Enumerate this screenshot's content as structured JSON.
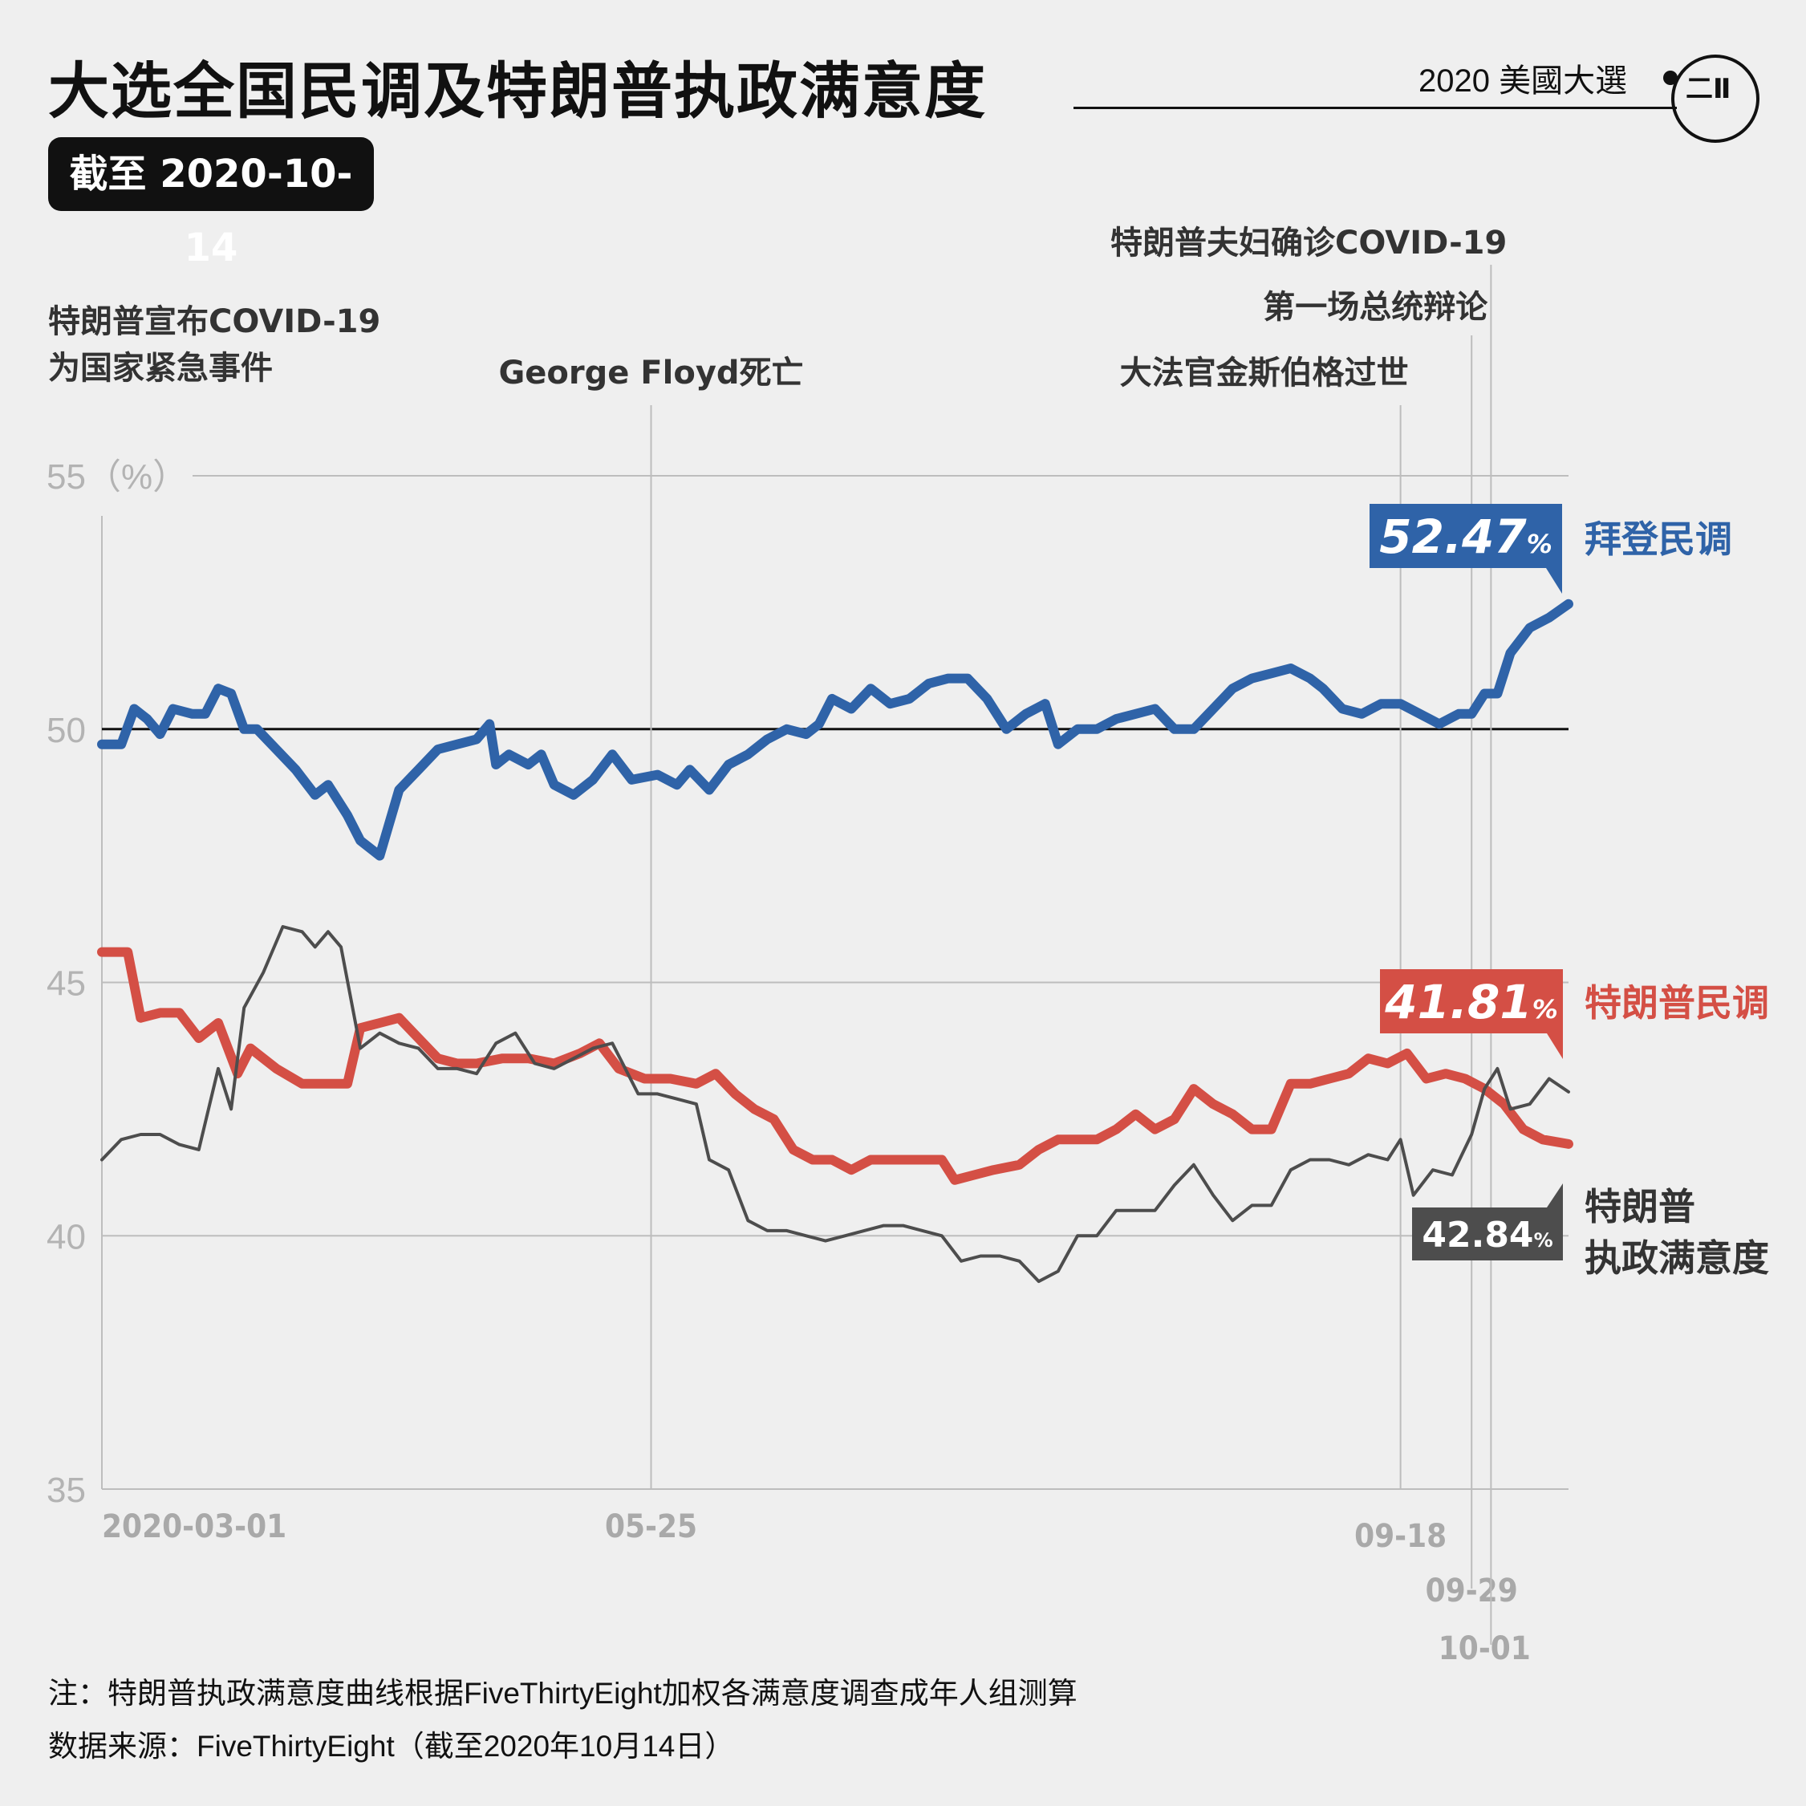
{
  "header": {
    "title": "大选全国民调及特朗普执政满意度",
    "date_badge": "截至 2020-10-14",
    "brand": "2020 美國大選",
    "logo_text": "二Ⅱ"
  },
  "footnotes": {
    "note": "注：特朗普执政满意度曲线根据FiveThirtyEight加权各满意度调查成年人组测算",
    "source": "数据来源：FiveThirtyEight（截至2020年10月14日）"
  },
  "colors": {
    "biden": "#2f63a8",
    "trump_poll": "#d44f45",
    "approval": "#4d4d4d",
    "grid": "#bdbdbd",
    "background": "#efefef"
  },
  "chart_data": {
    "type": "line",
    "title": "",
    "ylabel": "",
    "ylim": [
      35,
      55
    ],
    "yticks": [
      {
        "value": 55,
        "label": "55（%）"
      },
      {
        "value": 50,
        "label": "50"
      },
      {
        "value": 45,
        "label": "45"
      },
      {
        "value": 40,
        "label": "40"
      },
      {
        "value": 35,
        "label": "35"
      }
    ],
    "xrange": [
      "2020-03-01",
      "2020-10-14"
    ],
    "xticks": [
      {
        "date": "2020-03-01",
        "label": "2020-03-01"
      },
      {
        "date": "2020-05-25",
        "label": "05-25"
      },
      {
        "date": "2020-09-18",
        "label": "09-18"
      },
      {
        "date": "2020-09-29",
        "label": "09-29"
      },
      {
        "date": "2020-10-01",
        "label": "10-01"
      }
    ],
    "events": [
      {
        "date": "2020-03-13",
        "label_lines": [
          "特朗普宣布COVID-19",
          "为国家紧急事件"
        ],
        "line": false
      },
      {
        "date": "2020-05-25",
        "label_lines": [
          "George Floyd死亡"
        ],
        "line": true
      },
      {
        "date": "2020-09-18",
        "label_lines": [
          "大法官金斯伯格过世"
        ],
        "line": true
      },
      {
        "date": "2020-09-29",
        "label_lines": [
          "第一场总统辩论"
        ],
        "line": true
      },
      {
        "date": "2020-10-02",
        "label_lines": [
          "特朗普夫妇确诊COVID-19"
        ],
        "line": true
      }
    ],
    "series": [
      {
        "name": "拜登民调",
        "color": "#2f63a8",
        "end_label": "52.47",
        "unit": "%",
        "label_lines": [
          "拜登民调"
        ],
        "points": [
          [
            "2020-03-01",
            49.7
          ],
          [
            "2020-03-04",
            49.7
          ],
          [
            "2020-03-06",
            50.4
          ],
          [
            "2020-03-08",
            50.2
          ],
          [
            "2020-03-10",
            49.9
          ],
          [
            "2020-03-12",
            50.4
          ],
          [
            "2020-03-15",
            50.3
          ],
          [
            "2020-03-17",
            50.3
          ],
          [
            "2020-03-19",
            50.8
          ],
          [
            "2020-03-21",
            50.7
          ],
          [
            "2020-03-23",
            50.0
          ],
          [
            "2020-03-25",
            50.0
          ],
          [
            "2020-03-28",
            49.6
          ],
          [
            "2020-03-31",
            49.2
          ],
          [
            "2020-04-03",
            48.7
          ],
          [
            "2020-04-05",
            48.9
          ],
          [
            "2020-04-08",
            48.3
          ],
          [
            "2020-04-10",
            47.8
          ],
          [
            "2020-04-13",
            47.5
          ],
          [
            "2020-04-16",
            48.8
          ],
          [
            "2020-04-19",
            49.2
          ],
          [
            "2020-04-22",
            49.6
          ],
          [
            "2020-04-25",
            49.7
          ],
          [
            "2020-04-28",
            49.8
          ],
          [
            "2020-04-30",
            50.1
          ],
          [
            "2020-05-01",
            49.3
          ],
          [
            "2020-05-03",
            49.5
          ],
          [
            "2020-05-06",
            49.3
          ],
          [
            "2020-05-08",
            49.5
          ],
          [
            "2020-05-10",
            48.9
          ],
          [
            "2020-05-13",
            48.7
          ],
          [
            "2020-05-16",
            49.0
          ],
          [
            "2020-05-19",
            49.5
          ],
          [
            "2020-05-22",
            49.0
          ],
          [
            "2020-05-26",
            49.1
          ],
          [
            "2020-05-29",
            48.9
          ],
          [
            "2020-05-31",
            49.2
          ],
          [
            "2020-06-03",
            48.8
          ],
          [
            "2020-06-06",
            49.3
          ],
          [
            "2020-06-09",
            49.5
          ],
          [
            "2020-06-12",
            49.8
          ],
          [
            "2020-06-15",
            50.0
          ],
          [
            "2020-06-18",
            49.9
          ],
          [
            "2020-06-20",
            50.1
          ],
          [
            "2020-06-22",
            50.6
          ],
          [
            "2020-06-25",
            50.4
          ],
          [
            "2020-06-28",
            50.8
          ],
          [
            "2020-07-01",
            50.5
          ],
          [
            "2020-07-04",
            50.6
          ],
          [
            "2020-07-07",
            50.9
          ],
          [
            "2020-07-10",
            51.0
          ],
          [
            "2020-07-13",
            51.0
          ],
          [
            "2020-07-16",
            50.6
          ],
          [
            "2020-07-19",
            50.0
          ],
          [
            "2020-07-22",
            50.3
          ],
          [
            "2020-07-25",
            50.5
          ],
          [
            "2020-07-27",
            49.7
          ],
          [
            "2020-07-30",
            50.0
          ],
          [
            "2020-08-02",
            50.0
          ],
          [
            "2020-08-05",
            50.2
          ],
          [
            "2020-08-08",
            50.3
          ],
          [
            "2020-08-11",
            50.4
          ],
          [
            "2020-08-14",
            50.0
          ],
          [
            "2020-08-17",
            50.0
          ],
          [
            "2020-08-20",
            50.4
          ],
          [
            "2020-08-23",
            50.8
          ],
          [
            "2020-08-26",
            51.0
          ],
          [
            "2020-08-29",
            51.1
          ],
          [
            "2020-09-01",
            51.2
          ],
          [
            "2020-09-04",
            51.0
          ],
          [
            "2020-09-06",
            50.8
          ],
          [
            "2020-09-09",
            50.4
          ],
          [
            "2020-09-12",
            50.3
          ],
          [
            "2020-09-15",
            50.5
          ],
          [
            "2020-09-18",
            50.5
          ],
          [
            "2020-09-21",
            50.3
          ],
          [
            "2020-09-24",
            50.1
          ],
          [
            "2020-09-27",
            50.3
          ],
          [
            "2020-09-29",
            50.3
          ],
          [
            "2020-10-01",
            50.7
          ],
          [
            "2020-10-03",
            50.7
          ],
          [
            "2020-10-05",
            51.5
          ],
          [
            "2020-10-08",
            52.0
          ],
          [
            "2020-10-11",
            52.2
          ],
          [
            "2020-10-14",
            52.47
          ]
        ]
      },
      {
        "name": "特朗普民调",
        "color": "#d44f45",
        "end_label": "41.81",
        "unit": "%",
        "label_lines": [
          "特朗普民调"
        ],
        "points": [
          [
            "2020-03-01",
            45.6
          ],
          [
            "2020-03-05",
            45.6
          ],
          [
            "2020-03-07",
            44.3
          ],
          [
            "2020-03-10",
            44.4
          ],
          [
            "2020-03-13",
            44.4
          ],
          [
            "2020-03-16",
            43.9
          ],
          [
            "2020-03-19",
            44.2
          ],
          [
            "2020-03-22",
            43.2
          ],
          [
            "2020-03-24",
            43.7
          ],
          [
            "2020-03-28",
            43.3
          ],
          [
            "2020-04-01",
            43.0
          ],
          [
            "2020-04-05",
            43.0
          ],
          [
            "2020-04-08",
            43.0
          ],
          [
            "2020-04-10",
            44.1
          ],
          [
            "2020-04-13",
            44.2
          ],
          [
            "2020-04-16",
            44.3
          ],
          [
            "2020-04-19",
            43.9
          ],
          [
            "2020-04-22",
            43.5
          ],
          [
            "2020-04-25",
            43.4
          ],
          [
            "2020-04-28",
            43.4
          ],
          [
            "2020-05-02",
            43.5
          ],
          [
            "2020-05-06",
            43.5
          ],
          [
            "2020-05-10",
            43.4
          ],
          [
            "2020-05-14",
            43.6
          ],
          [
            "2020-05-17",
            43.8
          ],
          [
            "2020-05-20",
            43.3
          ],
          [
            "2020-05-24",
            43.1
          ],
          [
            "2020-05-28",
            43.1
          ],
          [
            "2020-06-01",
            43.0
          ],
          [
            "2020-06-04",
            43.2
          ],
          [
            "2020-06-07",
            42.8
          ],
          [
            "2020-06-10",
            42.5
          ],
          [
            "2020-06-13",
            42.3
          ],
          [
            "2020-06-16",
            41.7
          ],
          [
            "2020-06-19",
            41.5
          ],
          [
            "2020-06-22",
            41.5
          ],
          [
            "2020-06-25",
            41.3
          ],
          [
            "2020-06-28",
            41.5
          ],
          [
            "2020-07-01",
            41.5
          ],
          [
            "2020-07-05",
            41.5
          ],
          [
            "2020-07-09",
            41.5
          ],
          [
            "2020-07-11",
            41.1
          ],
          [
            "2020-07-14",
            41.2
          ],
          [
            "2020-07-17",
            41.3
          ],
          [
            "2020-07-21",
            41.4
          ],
          [
            "2020-07-24",
            41.7
          ],
          [
            "2020-07-27",
            41.9
          ],
          [
            "2020-07-30",
            41.9
          ],
          [
            "2020-08-02",
            41.9
          ],
          [
            "2020-08-05",
            42.1
          ],
          [
            "2020-08-08",
            42.4
          ],
          [
            "2020-08-11",
            42.1
          ],
          [
            "2020-08-14",
            42.3
          ],
          [
            "2020-08-17",
            42.9
          ],
          [
            "2020-08-20",
            42.6
          ],
          [
            "2020-08-23",
            42.4
          ],
          [
            "2020-08-26",
            42.1
          ],
          [
            "2020-08-29",
            42.1
          ],
          [
            "2020-09-01",
            43.0
          ],
          [
            "2020-09-04",
            43.0
          ],
          [
            "2020-09-07",
            43.1
          ],
          [
            "2020-09-10",
            43.2
          ],
          [
            "2020-09-13",
            43.5
          ],
          [
            "2020-09-16",
            43.4
          ],
          [
            "2020-09-19",
            43.6
          ],
          [
            "2020-09-22",
            43.1
          ],
          [
            "2020-09-25",
            43.2
          ],
          [
            "2020-09-28",
            43.1
          ],
          [
            "2020-10-01",
            42.9
          ],
          [
            "2020-10-04",
            42.6
          ],
          [
            "2020-10-07",
            42.1
          ],
          [
            "2020-10-10",
            41.9
          ],
          [
            "2020-10-14",
            41.81
          ]
        ]
      },
      {
        "name": "特朗普执政满意度",
        "color": "#4d4d4d",
        "end_label": "42.84",
        "unit": "%",
        "label_lines": [
          "特朗普",
          "执政满意度"
        ],
        "points": [
          [
            "2020-03-01",
            41.5
          ],
          [
            "2020-03-04",
            41.9
          ],
          [
            "2020-03-07",
            42.0
          ],
          [
            "2020-03-10",
            42.0
          ],
          [
            "2020-03-13",
            41.8
          ],
          [
            "2020-03-16",
            41.7
          ],
          [
            "2020-03-19",
            43.3
          ],
          [
            "2020-03-21",
            42.5
          ],
          [
            "2020-03-23",
            44.5
          ],
          [
            "2020-03-26",
            45.2
          ],
          [
            "2020-03-29",
            46.1
          ],
          [
            "2020-04-01",
            46.0
          ],
          [
            "2020-04-03",
            45.7
          ],
          [
            "2020-04-05",
            46.0
          ],
          [
            "2020-04-07",
            45.7
          ],
          [
            "2020-04-10",
            43.7
          ],
          [
            "2020-04-13",
            44.0
          ],
          [
            "2020-04-16",
            43.8
          ],
          [
            "2020-04-19",
            43.7
          ],
          [
            "2020-04-22",
            43.3
          ],
          [
            "2020-04-25",
            43.3
          ],
          [
            "2020-04-28",
            43.2
          ],
          [
            "2020-05-01",
            43.8
          ],
          [
            "2020-05-04",
            44.0
          ],
          [
            "2020-05-07",
            43.4
          ],
          [
            "2020-05-10",
            43.3
          ],
          [
            "2020-05-13",
            43.5
          ],
          [
            "2020-05-16",
            43.7
          ],
          [
            "2020-05-19",
            43.8
          ],
          [
            "2020-05-23",
            42.8
          ],
          [
            "2020-05-26",
            42.8
          ],
          [
            "2020-05-29",
            42.7
          ],
          [
            "2020-06-01",
            42.6
          ],
          [
            "2020-06-03",
            41.5
          ],
          [
            "2020-06-06",
            41.3
          ],
          [
            "2020-06-09",
            40.3
          ],
          [
            "2020-06-12",
            40.1
          ],
          [
            "2020-06-15",
            40.1
          ],
          [
            "2020-06-18",
            40.0
          ],
          [
            "2020-06-21",
            39.9
          ],
          [
            "2020-06-24",
            40.0
          ],
          [
            "2020-06-27",
            40.1
          ],
          [
            "2020-06-30",
            40.2
          ],
          [
            "2020-07-03",
            40.2
          ],
          [
            "2020-07-06",
            40.1
          ],
          [
            "2020-07-09",
            40.0
          ],
          [
            "2020-07-12",
            39.5
          ],
          [
            "2020-07-15",
            39.6
          ],
          [
            "2020-07-18",
            39.6
          ],
          [
            "2020-07-21",
            39.5
          ],
          [
            "2020-07-24",
            39.1
          ],
          [
            "2020-07-27",
            39.3
          ],
          [
            "2020-07-30",
            40.0
          ],
          [
            "2020-08-02",
            40.0
          ],
          [
            "2020-08-05",
            40.5
          ],
          [
            "2020-08-08",
            40.5
          ],
          [
            "2020-08-11",
            40.5
          ],
          [
            "2020-08-14",
            41.0
          ],
          [
            "2020-08-17",
            41.4
          ],
          [
            "2020-08-20",
            40.8
          ],
          [
            "2020-08-23",
            40.3
          ],
          [
            "2020-08-26",
            40.6
          ],
          [
            "2020-08-29",
            40.6
          ],
          [
            "2020-09-01",
            41.3
          ],
          [
            "2020-09-04",
            41.5
          ],
          [
            "2020-09-07",
            41.5
          ],
          [
            "2020-09-10",
            41.4
          ],
          [
            "2020-09-13",
            41.6
          ],
          [
            "2020-09-16",
            41.5
          ],
          [
            "2020-09-18",
            41.9
          ],
          [
            "2020-09-20",
            40.8
          ],
          [
            "2020-09-23",
            41.3
          ],
          [
            "2020-09-26",
            41.2
          ],
          [
            "2020-09-29",
            42.0
          ],
          [
            "2020-10-01",
            42.9
          ],
          [
            "2020-10-03",
            43.3
          ],
          [
            "2020-10-05",
            42.5
          ],
          [
            "2020-10-08",
            42.6
          ],
          [
            "2020-10-11",
            43.1
          ],
          [
            "2020-10-14",
            42.84
          ]
        ]
      }
    ]
  }
}
